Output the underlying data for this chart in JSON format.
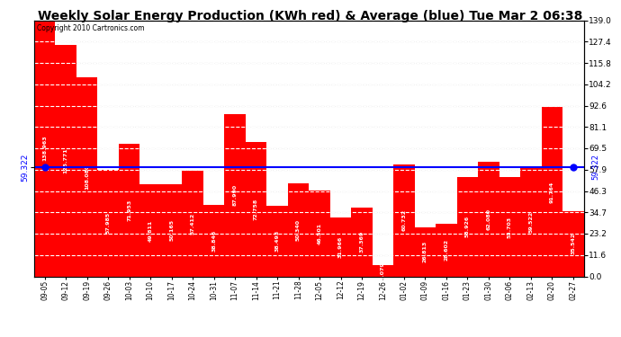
{
  "title": "Weekly Solar Energy Production (KWh red) & Average (blue) Tue Mar 2 06:38",
  "copyright": "Copyright 2010 Cartronics.com",
  "categories": [
    "09-05",
    "09-12",
    "09-19",
    "09-26",
    "10-03",
    "10-10",
    "10-17",
    "10-24",
    "10-31",
    "11-07",
    "11-14",
    "11-21",
    "11-28",
    "12-05",
    "12-12",
    "12-19",
    "12-26",
    "01-02",
    "01-09",
    "01-16",
    "01-23",
    "01-30",
    "02-06",
    "02-13",
    "02-20",
    "02-27"
  ],
  "values": [
    138.963,
    125.771,
    108.08,
    57.985,
    71.953,
    49.811,
    50.165,
    57.412,
    38.846,
    87.99,
    72.758,
    38.493,
    50.34,
    46.501,
    31.966,
    37.369,
    6.079,
    60.732,
    26.813,
    28.602,
    53.926,
    62.08,
    53.703,
    59.522,
    91.764,
    35.542
  ],
  "average": 59.322,
  "bar_color": "#ff0000",
  "average_color": "#0000ff",
  "background_color": "#ffffff",
  "plot_bg_color": "#ffffff",
  "ylim": [
    0.0,
    139.0
  ],
  "yticks_right": [
    0.0,
    11.6,
    23.2,
    34.7,
    46.3,
    57.9,
    69.5,
    81.1,
    92.6,
    104.2,
    115.8,
    127.4,
    139.0
  ],
  "grid_color": "#c8c8c8",
  "title_fontsize": 10,
  "avg_label": "59.322",
  "val_label_color": "#ffffff",
  "val_label_fontsize": 4.5,
  "copyright_fontsize": 5.5,
  "xtick_fontsize": 5.5,
  "ytick_fontsize": 6.5
}
